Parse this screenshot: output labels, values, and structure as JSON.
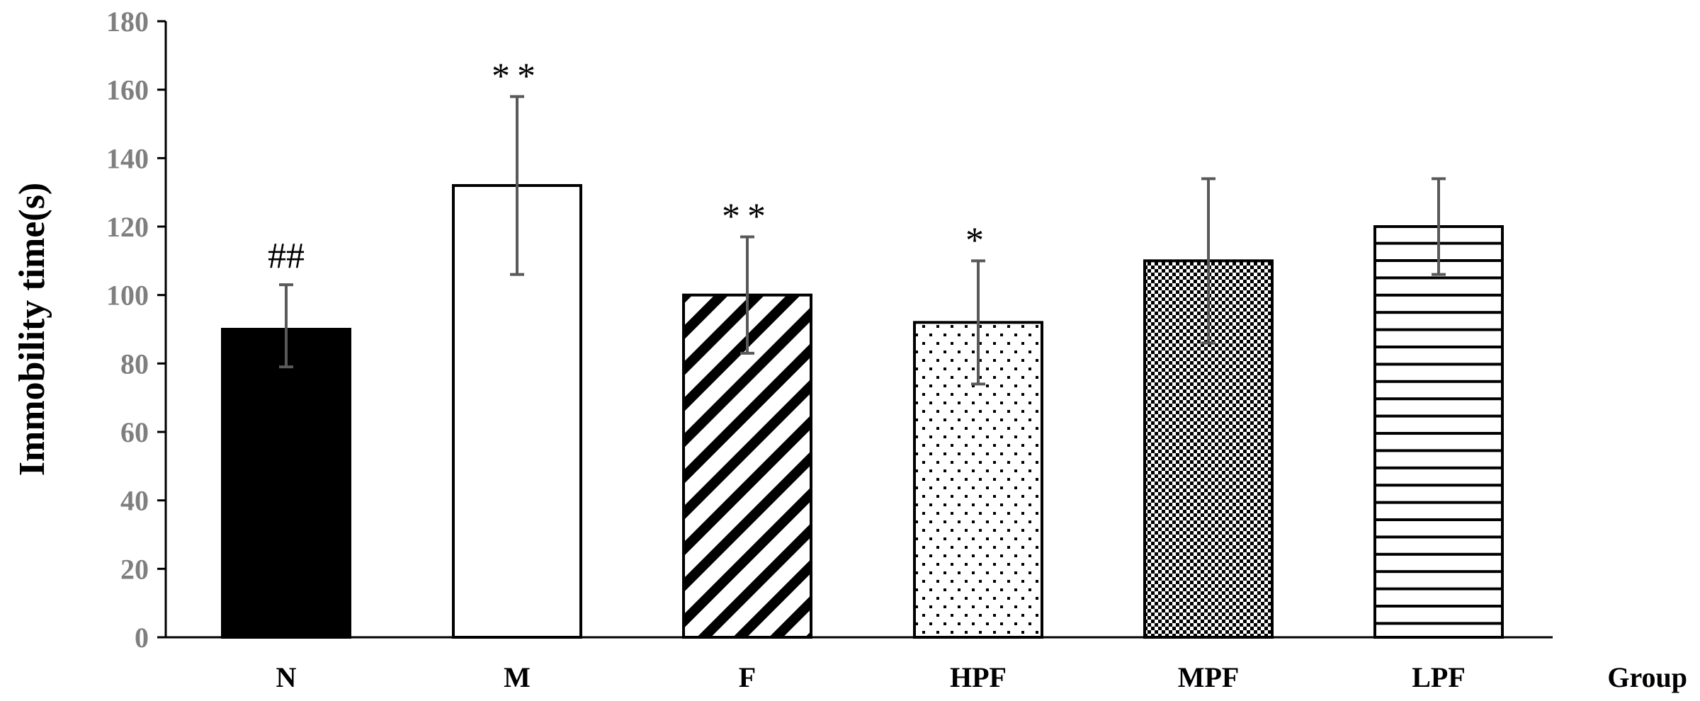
{
  "chart_data": {
    "type": "bar",
    "title": "",
    "ylabel": "Immobility time(s)",
    "xlabel": "Group",
    "ylim": [
      0,
      180
    ],
    "yticks": [
      0,
      20,
      40,
      60,
      80,
      100,
      120,
      140,
      160,
      180
    ],
    "categories": [
      "N",
      "M",
      "F",
      "HPF",
      "MPF",
      "LPF"
    ],
    "values": [
      90,
      132,
      100,
      92,
      110,
      120
    ],
    "errors": [
      [
        79,
        103
      ],
      [
        106,
        158
      ],
      [
        83,
        117
      ],
      [
        74,
        110
      ],
      [
        86,
        134
      ],
      [
        106,
        134
      ]
    ],
    "annotations": [
      "##",
      "**",
      "**",
      "*",
      "",
      ""
    ],
    "patterns": [
      "solid-black",
      "white",
      "diagonal-stripes",
      "dots",
      "checker",
      "horizontal-stripes"
    ],
    "grid": false
  }
}
